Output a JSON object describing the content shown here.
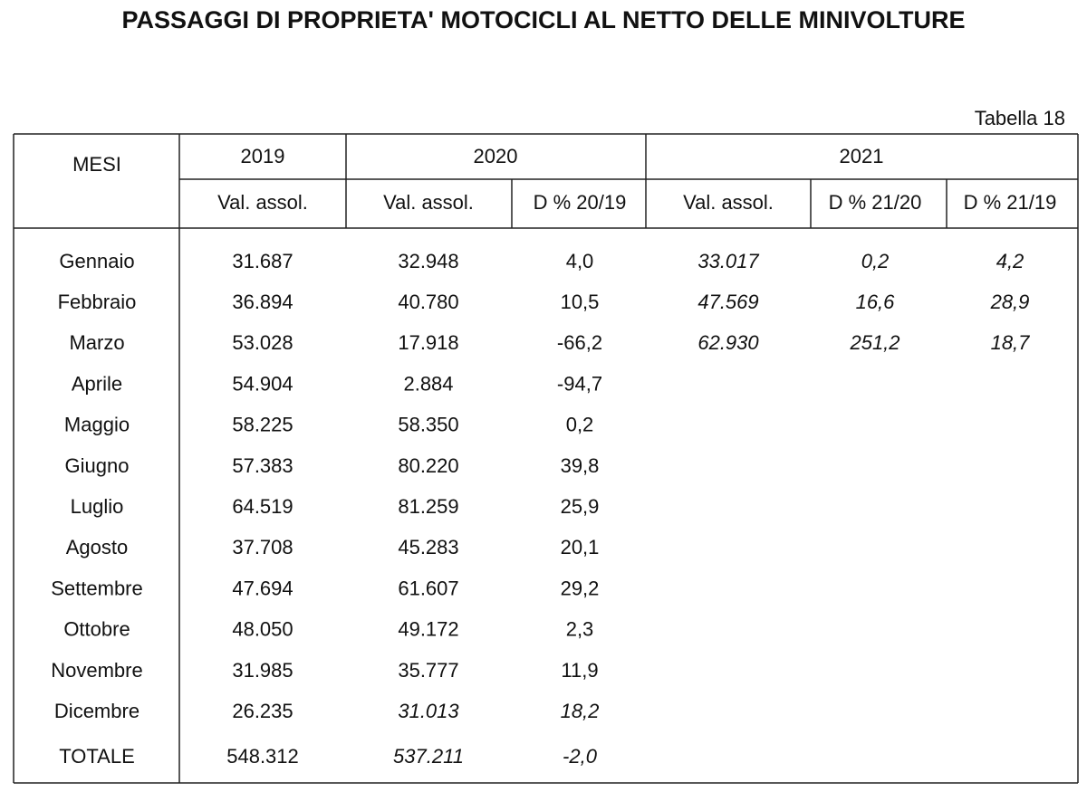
{
  "title": "PASSAGGI DI PROPRIETA' MOTOCICLI AL NETTO DELLE MINIVOLTURE",
  "table_label": "Tabella 18",
  "table": {
    "header": {
      "months": "MESI",
      "years": [
        "2019",
        "2020",
        "2021"
      ],
      "subheaders": [
        "Val. assol.",
        "Val. assol.",
        "D % 20/19",
        "Val. assol.",
        "D % 21/20",
        "D % 21/19"
      ]
    },
    "rows": [
      [
        "Gennaio",
        "31.687",
        "32.948",
        "4,0",
        "33.017",
        "0,2",
        "4,2"
      ],
      [
        "Febbraio",
        "36.894",
        "40.780",
        "10,5",
        "47.569",
        "16,6",
        "28,9"
      ],
      [
        "Marzo",
        "53.028",
        "17.918",
        "-66,2",
        "62.930",
        "251,2",
        "18,7"
      ],
      [
        "Aprile",
        "54.904",
        "2.884",
        "-94,7"
      ],
      [
        "Maggio",
        "58.225",
        "58.350",
        "0,2"
      ],
      [
        "Giugno",
        "57.383",
        "80.220",
        "39,8"
      ],
      [
        "Luglio",
        "64.519",
        "81.259",
        "25,9"
      ],
      [
        "Agosto",
        "37.708",
        "45.283",
        "20,1"
      ],
      [
        "Settembre",
        "47.694",
        "61.607",
        "29,2"
      ],
      [
        "Ottobre",
        "48.050",
        "49.172",
        "2,3"
      ],
      [
        "Novembre",
        "31.985",
        "35.777",
        "11,9"
      ],
      [
        "Dicembre",
        "26.235",
        "31.013",
        "18,2"
      ],
      [
        "TOTALE",
        "548.312",
        "537.211",
        "-2,0"
      ]
    ]
  }
}
